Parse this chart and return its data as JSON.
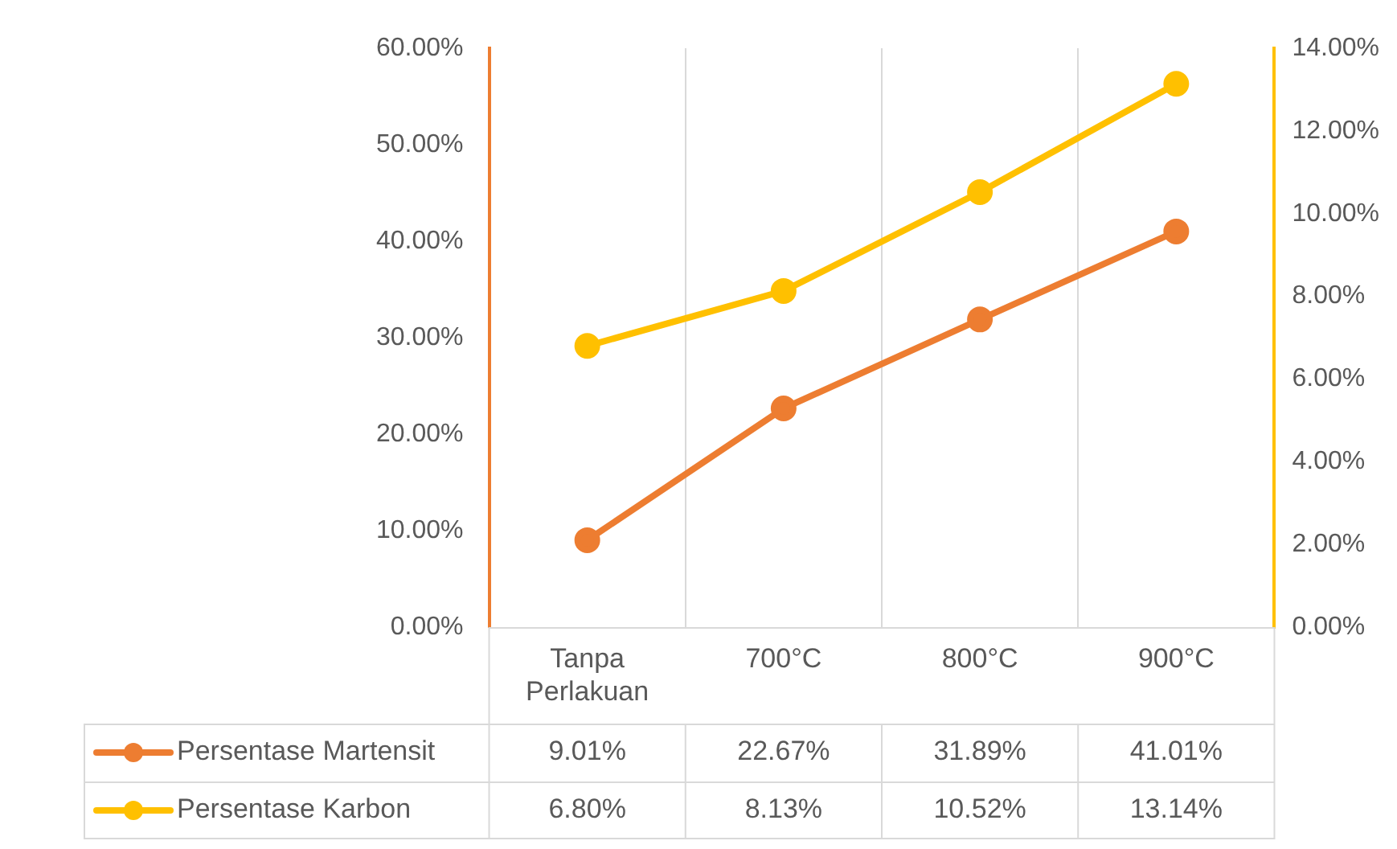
{
  "chart_data": {
    "type": "line",
    "categories": [
      "Tanpa Perlakuan",
      "700°C",
      "800°C",
      "900°C"
    ],
    "series": [
      {
        "name": "Persentase Martensit",
        "color": "#ed7d31",
        "values": [
          9.01,
          22.67,
          31.89,
          41.01
        ],
        "value_labels": [
          "9.01%",
          "22.67%",
          "31.89%",
          "41.01%"
        ]
      },
      {
        "name": "Persentase Karbon",
        "color": "#ffc000",
        "axis": "y2",
        "values": [
          6.8,
          8.13,
          10.52,
          13.14
        ],
        "value_labels": [
          "6.80%",
          "8.13%",
          "10.52%",
          "13.14%"
        ]
      }
    ],
    "ylim": [
      0,
      60
    ],
    "yticks": [
      {
        "value": 0,
        "label": "0.00%"
      },
      {
        "value": 10,
        "label": "10.00%"
      },
      {
        "value": 20,
        "label": "20.00%"
      },
      {
        "value": 30,
        "label": "30.00%"
      },
      {
        "value": 40,
        "label": "40.00%"
      },
      {
        "value": 50,
        "label": "50.00%"
      },
      {
        "value": 60,
        "label": "60.00%"
      }
    ],
    "y2lim": [
      0,
      14
    ],
    "y2ticks": [
      {
        "value": 0,
        "label": "0.00%"
      },
      {
        "value": 2,
        "label": "2.00%"
      },
      {
        "value": 4,
        "label": "4.00%"
      },
      {
        "value": 6,
        "label": "6.00%"
      },
      {
        "value": 8,
        "label": "8.00%"
      },
      {
        "value": 10,
        "label": "10.00%"
      },
      {
        "value": 12,
        "label": "12.00%"
      },
      {
        "value": 14,
        "label": "14.00%"
      }
    ],
    "grid": "x",
    "legend": "bottom",
    "marker": "circle",
    "line_style": "solid"
  }
}
